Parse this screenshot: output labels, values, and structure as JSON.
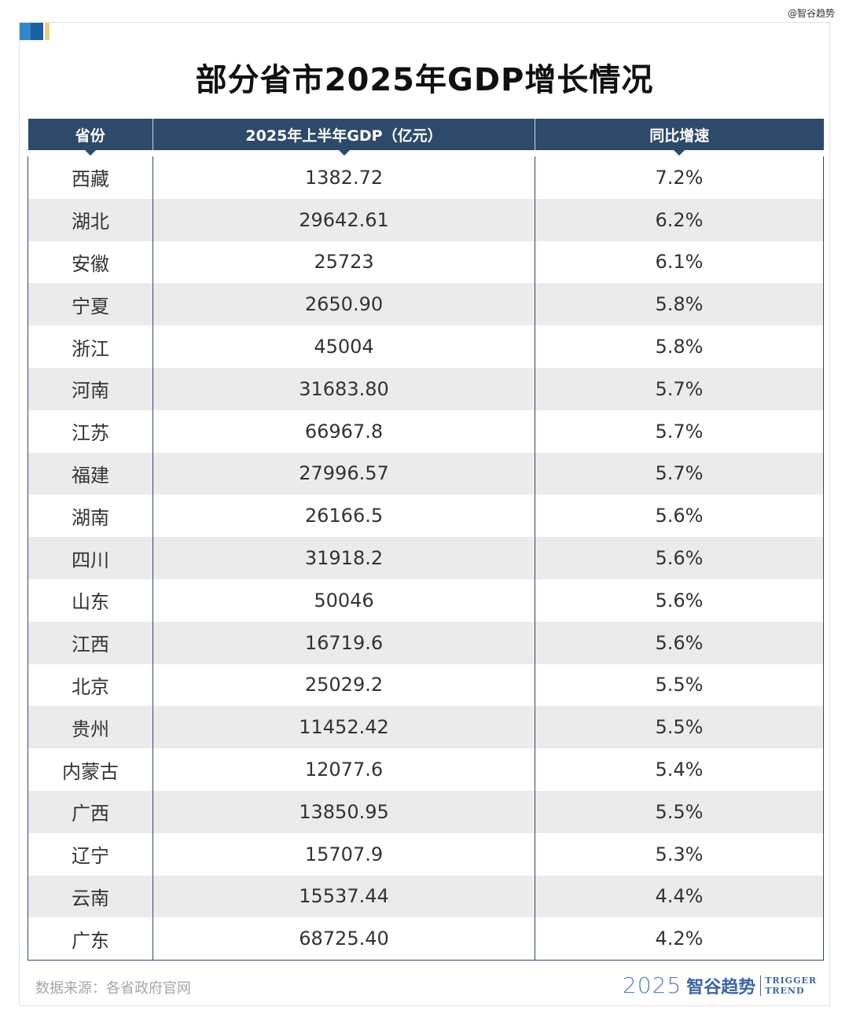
{
  "watermark": "@智谷趋势",
  "title": "部分省市2025年GDP增长情况",
  "table": {
    "headers": [
      "省份",
      "2025年上半年GDP（亿元）",
      "同比增速"
    ],
    "rows": [
      [
        "西藏",
        "1382.72",
        "7.2%"
      ],
      [
        "湖北",
        "29642.61",
        "6.2%"
      ],
      [
        "安徽",
        "25723",
        "6.1%"
      ],
      [
        "宁夏",
        "2650.90",
        "5.8%"
      ],
      [
        "浙江",
        "45004",
        "5.8%"
      ],
      [
        "河南",
        "31683.80",
        "5.7%"
      ],
      [
        "江苏",
        "66967.8",
        "5.7%"
      ],
      [
        "福建",
        "27996.57",
        "5.7%"
      ],
      [
        "湖南",
        "26166.5",
        "5.6%"
      ],
      [
        "四川",
        "31918.2",
        "5.6%"
      ],
      [
        "山东",
        "50046",
        "5.6%"
      ],
      [
        "江西",
        "16719.6",
        "5.6%"
      ],
      [
        "北京",
        "25029.2",
        "5.5%"
      ],
      [
        "贵州",
        "11452.42",
        "5.5%"
      ],
      [
        "内蒙古",
        "12077.6",
        "5.4%"
      ],
      [
        "广西",
        "13850.95",
        "5.5%"
      ],
      [
        "辽宁",
        "15707.9",
        "5.3%"
      ],
      [
        "云南",
        "15537.44",
        "4.4%"
      ],
      [
        "广东",
        "68725.40",
        "4.2%"
      ]
    ]
  },
  "footer": {
    "source": "数据来源：各省政府官网",
    "brand_year": "2025",
    "brand_name": "智谷趋势",
    "brand_en_line1": "TRIGGER",
    "brand_en_line2": "TREND"
  },
  "colors": {
    "header_bg": "#2e4a6b",
    "row_alt_bg": "#ebebeb",
    "brand_blue": "#3a66a8"
  }
}
